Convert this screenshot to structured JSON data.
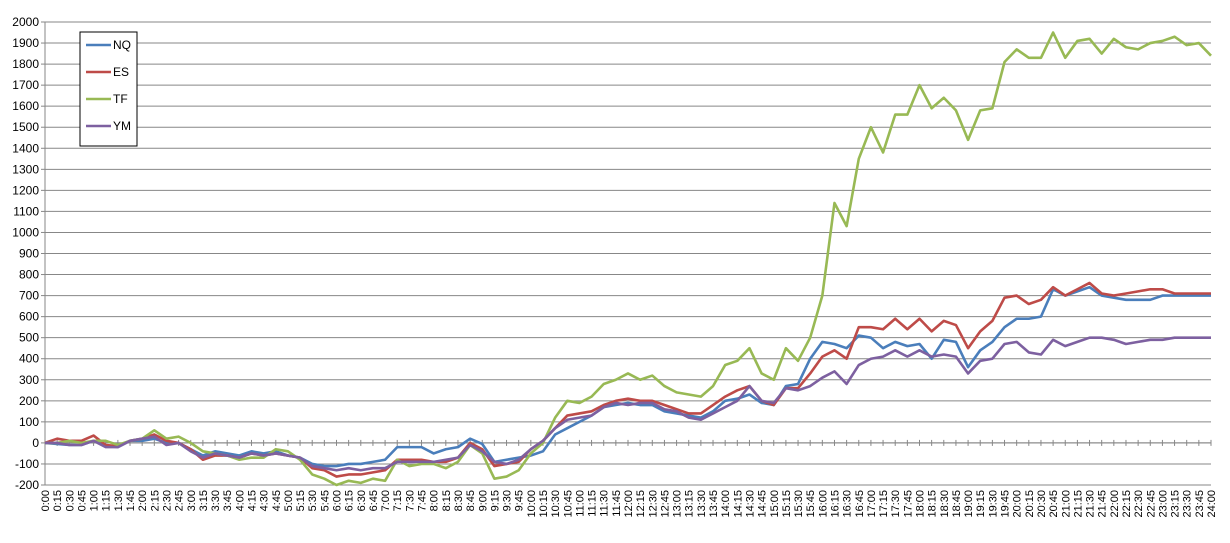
{
  "chart_data": {
    "type": "line",
    "title": "",
    "xlabel": "",
    "ylabel": "",
    "ylim": [
      -200,
      2000
    ],
    "yticks": [
      -200,
      -100,
      0,
      100,
      200,
      300,
      400,
      500,
      600,
      700,
      800,
      900,
      1000,
      1100,
      1200,
      1300,
      1400,
      1500,
      1600,
      1700,
      1800,
      1900,
      2000
    ],
    "grid": true,
    "legend_position": "top-left",
    "categories": [
      "0:00",
      "0:15",
      "0:30",
      "0:45",
      "1:00",
      "1:15",
      "1:30",
      "1:45",
      "2:00",
      "2:15",
      "2:30",
      "2:45",
      "3:00",
      "3:15",
      "3:30",
      "3:45",
      "4:00",
      "4:15",
      "4:30",
      "4:45",
      "5:00",
      "5:15",
      "5:30",
      "5:45",
      "6:00",
      "6:15",
      "6:30",
      "6:45",
      "7:00",
      "7:15",
      "7:30",
      "7:45",
      "8:00",
      "8:15",
      "8:30",
      "8:45",
      "9:00",
      "9:15",
      "9:30",
      "9:45",
      "10:00",
      "10:15",
      "10:30",
      "10:45",
      "11:00",
      "11:15",
      "11:30",
      "11:45",
      "12:00",
      "12:15",
      "12:30",
      "12:45",
      "13:00",
      "13:15",
      "13:30",
      "13:45",
      "14:00",
      "14:15",
      "14:30",
      "14:45",
      "15:00",
      "15:15",
      "15:30",
      "15:45",
      "16:00",
      "16:15",
      "16:30",
      "16:45",
      "17:00",
      "17:15",
      "17:30",
      "17:45",
      "18:00",
      "18:15",
      "18:30",
      "18:45",
      "19:00",
      "19:15",
      "19:30",
      "19:45",
      "20:00",
      "20:15",
      "20:30",
      "20:45",
      "21:00",
      "21:15",
      "21:30",
      "21:45",
      "22:00",
      "22:15",
      "22:30",
      "22:45",
      "23:00",
      "23:15",
      "23:30",
      "23:45",
      "24:00"
    ],
    "series": [
      {
        "name": "NQ",
        "color": "#4a7ebb",
        "values": [
          0,
          -5,
          -10,
          -10,
          10,
          -15,
          -20,
          10,
          10,
          20,
          0,
          0,
          -30,
          -60,
          -40,
          -50,
          -60,
          -40,
          -50,
          -40,
          -60,
          -70,
          -100,
          -110,
          -110,
          -100,
          -100,
          -90,
          -80,
          -20,
          -20,
          -20,
          -50,
          -30,
          -20,
          20,
          -5,
          -90,
          -80,
          -70,
          -60,
          -40,
          40,
          70,
          100,
          130,
          170,
          180,
          190,
          180,
          180,
          150,
          140,
          130,
          120,
          150,
          200,
          210,
          230,
          190,
          180,
          270,
          280,
          400,
          480,
          470,
          450,
          510,
          500,
          450,
          480,
          460,
          470,
          400,
          490,
          480,
          360,
          440,
          480,
          550,
          590,
          590,
          600,
          730,
          700,
          720,
          740,
          700,
          690,
          680,
          680,
          680,
          700,
          700,
          700,
          700,
          700
        ]
      },
      {
        "name": "ES",
        "color": "#be4b48",
        "values": [
          0,
          20,
          10,
          10,
          35,
          -10,
          -15,
          10,
          20,
          40,
          10,
          0,
          -30,
          -80,
          -60,
          -60,
          -70,
          -50,
          -60,
          -50,
          -60,
          -70,
          -120,
          -130,
          -160,
          -150,
          -150,
          -140,
          -130,
          -80,
          -80,
          -80,
          -90,
          -90,
          -70,
          0,
          -30,
          -110,
          -100,
          -90,
          -30,
          10,
          70,
          130,
          140,
          150,
          180,
          200,
          210,
          200,
          200,
          180,
          160,
          140,
          140,
          180,
          220,
          250,
          270,
          200,
          180,
          260,
          260,
          330,
          410,
          440,
          400,
          550,
          550,
          540,
          590,
          540,
          590,
          530,
          580,
          560,
          450,
          530,
          580,
          690,
          700,
          660,
          680,
          740,
          700,
          730,
          760,
          710,
          700,
          710,
          720,
          730,
          730,
          710,
          710,
          710,
          710
        ]
      },
      {
        "name": "TF",
        "color": "#98b954",
        "values": [
          0,
          0,
          10,
          0,
          10,
          10,
          -10,
          10,
          20,
          60,
          20,
          30,
          0,
          -40,
          -50,
          -60,
          -80,
          -70,
          -70,
          -30,
          -40,
          -80,
          -150,
          -170,
          -200,
          -180,
          -190,
          -170,
          -180,
          -80,
          -110,
          -100,
          -100,
          -120,
          -90,
          -10,
          -50,
          -170,
          -160,
          -130,
          -50,
          0,
          120,
          200,
          190,
          220,
          280,
          300,
          330,
          300,
          320,
          270,
          240,
          230,
          220,
          270,
          370,
          390,
          450,
          330,
          300,
          450,
          390,
          500,
          700,
          1140,
          1030,
          1350,
          1500,
          1380,
          1560,
          1560,
          1700,
          1590,
          1640,
          1580,
          1440,
          1580,
          1590,
          1810,
          1870,
          1830,
          1830,
          1950,
          1830,
          1910,
          1920,
          1850,
          1920,
          1880,
          1870,
          1900,
          1910,
          1930,
          1890,
          1900,
          1840
        ]
      },
      {
        "name": "YM",
        "color": "#7d60a0",
        "values": [
          0,
          0,
          -10,
          -10,
          10,
          -20,
          -20,
          10,
          20,
          30,
          -10,
          0,
          -40,
          -70,
          -50,
          -60,
          -70,
          -50,
          -60,
          -50,
          -60,
          -70,
          -110,
          -120,
          -130,
          -120,
          -130,
          -120,
          -120,
          -90,
          -90,
          -90,
          -90,
          -80,
          -70,
          -10,
          -40,
          -90,
          -100,
          -80,
          -30,
          10,
          70,
          110,
          120,
          130,
          170,
          190,
          180,
          190,
          190,
          160,
          150,
          120,
          110,
          140,
          170,
          200,
          270,
          200,
          190,
          260,
          250,
          270,
          310,
          340,
          280,
          370,
          400,
          410,
          440,
          410,
          440,
          410,
          420,
          410,
          330,
          390,
          400,
          470,
          480,
          430,
          420,
          490,
          460,
          480,
          500,
          500,
          490,
          470,
          480,
          490,
          490,
          500,
          500,
          500,
          500
        ]
      }
    ]
  }
}
